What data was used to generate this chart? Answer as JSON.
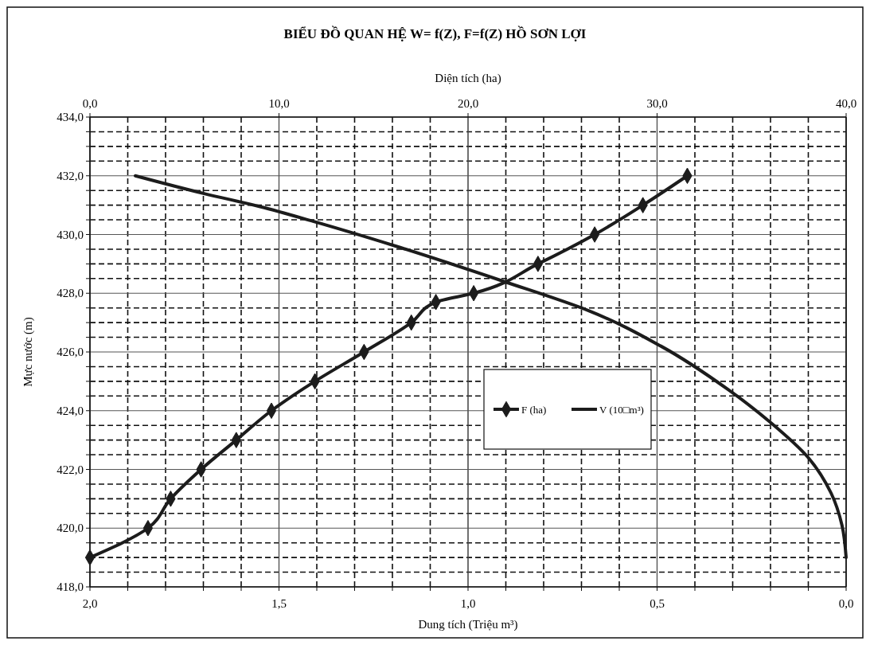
{
  "chart_data": {
    "type": "line",
    "title": "BIỂU ĐỒ QUAN HỆ  W= f(Z), F=f(Z) HỒ SƠN LỢI",
    "xlabel": "Dung tích  (Triệu m³)",
    "x2label": "Diện tích (ha)",
    "ylabel": "Mực nước (m)",
    "xlim": [
      2,
      0
    ],
    "xticks": [
      {
        "value": 2,
        "label": "2,0"
      },
      {
        "value": 1.9,
        "label": null
      },
      {
        "value": 1.8,
        "label": null
      },
      {
        "value": 1.7,
        "label": null
      },
      {
        "value": 1.6,
        "label": null
      },
      {
        "value": 1.5,
        "label": "1,5"
      },
      {
        "value": 1.4,
        "label": null
      },
      {
        "value": 1.3,
        "label": null
      },
      {
        "value": 1.2,
        "label": null
      },
      {
        "value": 1.1,
        "label": null
      },
      {
        "value": 1,
        "label": "1,0"
      },
      {
        "value": 0.9,
        "label": null
      },
      {
        "value": 0.8,
        "label": null
      },
      {
        "value": 0.7,
        "label": null
      },
      {
        "value": 0.6,
        "label": null
      },
      {
        "value": 0.5,
        "label": "0,5"
      },
      {
        "value": 0.4,
        "label": null
      },
      {
        "value": 0.3,
        "label": null
      },
      {
        "value": 0.2,
        "label": null
      },
      {
        "value": 0.1,
        "label": null
      },
      {
        "value": 0,
        "label": "0,0"
      }
    ],
    "x2lim": [
      0,
      40
    ],
    "x2ticks": [
      {
        "value": 0,
        "label": "0,0"
      },
      {
        "value": 10,
        "label": "10,0"
      },
      {
        "value": 20,
        "label": "20,0"
      },
      {
        "value": 30,
        "label": "30,0"
      },
      {
        "value": 40,
        "label": "40,0"
      }
    ],
    "ylim": [
      418,
      434
    ],
    "yticks": [
      {
        "value": 418,
        "label": "418,0"
      },
      {
        "value": 418.5,
        "label": null
      },
      {
        "value": 419,
        "label": null
      },
      {
        "value": 419.5,
        "label": null
      },
      {
        "value": 420,
        "label": "420,0"
      },
      {
        "value": 420.5,
        "label": null
      },
      {
        "value": 421,
        "label": null
      },
      {
        "value": 421.5,
        "label": null
      },
      {
        "value": 422,
        "label": "422,0"
      },
      {
        "value": 422.5,
        "label": null
      },
      {
        "value": 423,
        "label": null
      },
      {
        "value": 423.5,
        "label": null
      },
      {
        "value": 424,
        "label": "424,0"
      },
      {
        "value": 424.5,
        "label": null
      },
      {
        "value": 425,
        "label": null
      },
      {
        "value": 425.5,
        "label": null
      },
      {
        "value": 426,
        "label": "426,0"
      },
      {
        "value": 426.5,
        "label": null
      },
      {
        "value": 427,
        "label": null
      },
      {
        "value": 427.5,
        "label": null
      },
      {
        "value": 428,
        "label": "428,0"
      },
      {
        "value": 428.5,
        "label": null
      },
      {
        "value": 429,
        "label": null
      },
      {
        "value": 429.5,
        "label": null
      },
      {
        "value": 430,
        "label": "430,0"
      },
      {
        "value": 430.5,
        "label": null
      },
      {
        "value": 431,
        "label": null
      },
      {
        "value": 431.5,
        "label": null
      },
      {
        "value": 432,
        "label": "432,0"
      },
      {
        "value": 432.5,
        "label": null
      },
      {
        "value": 433,
        "label": null
      },
      {
        "value": 433.5,
        "label": null
      },
      {
        "value": 434,
        "label": "434,0"
      }
    ],
    "grid": true,
    "legend": "center",
    "series": [
      {
        "name": "F (ha)",
        "color": "#1c1c1c",
        "axis": "x2",
        "marker": "diamond",
        "x": [
          0,
          3.07,
          4.27,
          5.88,
          7.74,
          9.6,
          11.9,
          14.5,
          17.0,
          18.3,
          20.3,
          23.7,
          26.7,
          29.25,
          31.6
        ],
        "values": [
          419,
          420,
          421,
          422,
          423,
          424,
          425,
          426,
          427,
          427.7,
          428,
          429,
          430,
          431,
          432
        ]
      },
      {
        "name": "V (10□m³)",
        "color": "#1c1c1c",
        "marker": "none",
        "x": [
          1.88,
          1.7,
          1.55,
          1.41,
          1.19,
          0.905,
          0.68,
          0.49,
          0.31,
          0.2,
          0.1,
          0.04,
          0.011,
          0
        ],
        "values": [
          432,
          431.4,
          430.95,
          430.45,
          429.6,
          428.4,
          427.4,
          426.2,
          424.7,
          423.6,
          422.4,
          421.2,
          420.1,
          419
        ]
      }
    ]
  }
}
